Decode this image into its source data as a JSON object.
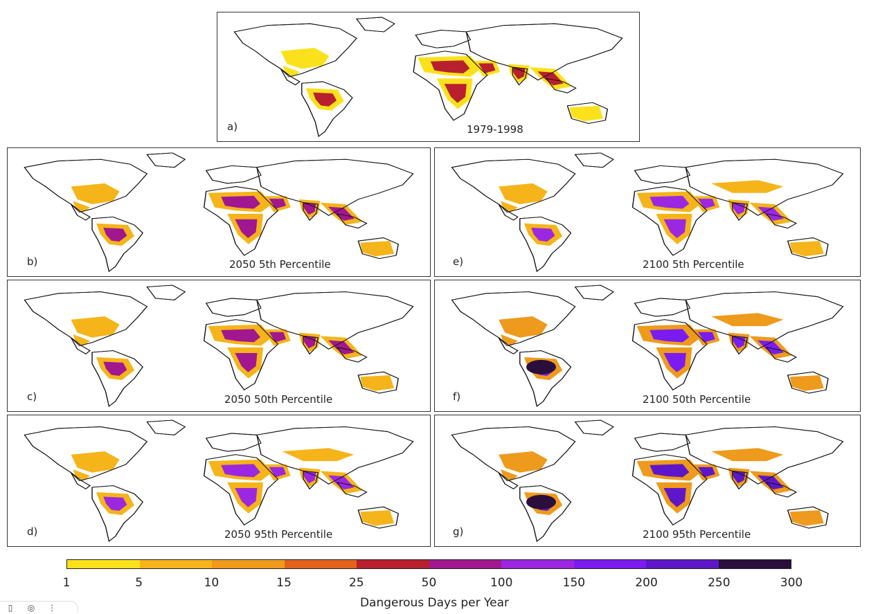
{
  "panels": [
    {
      "id": "a",
      "letter": "a)",
      "caption": "1979-1998",
      "intensity": 0
    },
    {
      "id": "b",
      "letter": "b)",
      "caption": "2050 5th Percentile",
      "intensity": 1
    },
    {
      "id": "e",
      "letter": "e)",
      "caption": "2100 5th Percentile",
      "intensity": 2
    },
    {
      "id": "c",
      "letter": "c)",
      "caption": "2050 50th Percentile",
      "intensity": 1
    },
    {
      "id": "f",
      "letter": "f)",
      "caption": "2100 50th Percentile",
      "intensity": 3
    },
    {
      "id": "d",
      "letter": "d)",
      "caption": "2050 95th Percentile",
      "intensity": 2
    },
    {
      "id": "g",
      "letter": "g)",
      "caption": "2100 95th Percentile",
      "intensity": 4
    }
  ],
  "colorbar": {
    "label": "Dangerous Days per Year",
    "ticks": [
      "1",
      "5",
      "10",
      "15",
      "25",
      "50",
      "100",
      "150",
      "200",
      "250",
      "300"
    ],
    "colors": [
      "#fbe11c",
      "#f5b41a",
      "#ee9a1c",
      "#e2621d",
      "#b8202f",
      "#a1178f",
      "#9b28e0",
      "#7a1cf0",
      "#5e17c8",
      "#2a0e3c"
    ]
  },
  "toolbar": {
    "icons": [
      "▯",
      "◎",
      "⋮"
    ]
  }
}
